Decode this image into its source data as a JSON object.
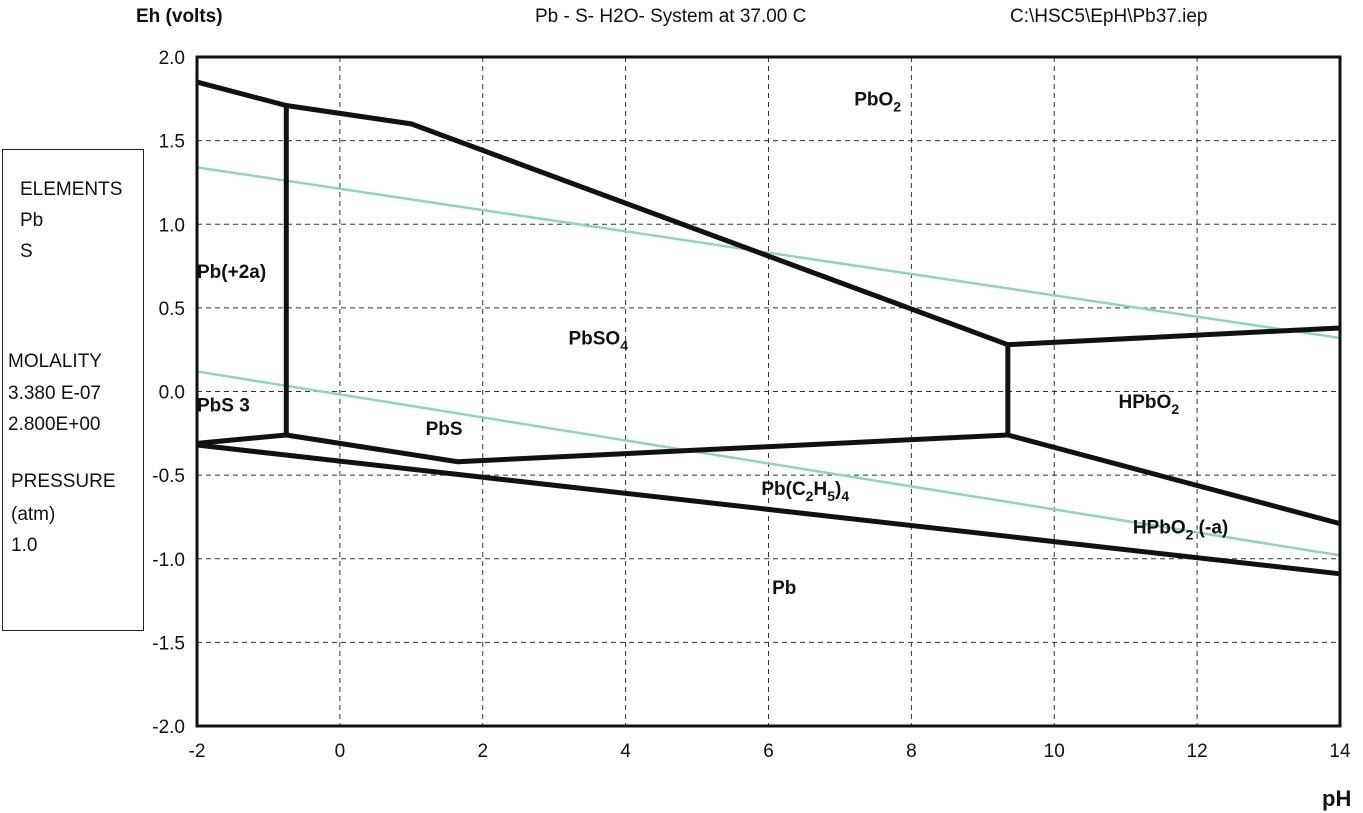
{
  "header": {
    "ylabel": "Eh (volts)",
    "title": "Pb - S- H2O- System at 37.00 C",
    "file": "C:\\HSC5\\EpH\\Pb37.iep"
  },
  "info_box": {
    "elements_label": "ELEMENTS",
    "elements": [
      "Pb",
      "S"
    ],
    "molality_label": "MOLALITY",
    "molality": [
      "3.380 E-07",
      "2.800E+00"
    ],
    "pressure_label": "PRESSURE",
    "pressure_unit": "(atm)",
    "pressure_value": "1.0"
  },
  "colors": {
    "boundary": "#111111",
    "water_lines": "#8fd4bb",
    "grid": "#333333"
  },
  "chart_data": {
    "type": "line",
    "title": "Pb - S- H2O- System at 37.00 C",
    "xlabel": "pH",
    "ylabel": "Eh (volts)",
    "xlim": [
      -2,
      14
    ],
    "ylim": [
      -2.0,
      2.0
    ],
    "x_ticks": [
      "-2",
      "0",
      "2",
      "4",
      "6",
      "8",
      "10",
      "12",
      "14"
    ],
    "y_ticks": [
      "2.0",
      "1.5",
      "1.0",
      "0.5",
      "0.0",
      "-0.5",
      "-1.0",
      "-1.5",
      "-2.0"
    ],
    "grid": true,
    "boundary_lines": [
      {
        "points": [
          [
            -2,
            1.85
          ],
          [
            -0.75,
            1.71
          ],
          [
            1.0,
            1.6
          ],
          [
            9.35,
            0.28
          ],
          [
            14,
            0.38
          ]
        ]
      },
      {
        "points": [
          [
            -0.75,
            1.71
          ],
          [
            -0.75,
            -0.26
          ]
        ]
      },
      {
        "points": [
          [
            -2,
            -0.31
          ],
          [
            -0.75,
            -0.26
          ],
          [
            1.65,
            -0.42
          ],
          [
            9.35,
            -0.26
          ]
        ]
      },
      {
        "points": [
          [
            9.35,
            0.28
          ],
          [
            9.35,
            -0.26
          ]
        ]
      },
      {
        "points": [
          [
            9.35,
            -0.26
          ],
          [
            14,
            -0.79
          ]
        ]
      },
      {
        "points": [
          [
            -2,
            -0.32
          ],
          [
            14,
            -1.09
          ]
        ]
      }
    ],
    "water_stability_lines": [
      {
        "points": [
          [
            -2,
            1.34
          ],
          [
            14,
            0.32
          ]
        ]
      },
      {
        "points": [
          [
            -2,
            0.12
          ],
          [
            14,
            -0.98
          ]
        ]
      }
    ],
    "regions": [
      {
        "label": "PbO",
        "sub": "2",
        "x": 7.2,
        "y": 1.71
      },
      {
        "label": "Pb(+2a)",
        "sub": "",
        "x": -2.0,
        "y": 0.68
      },
      {
        "label": "PbSO",
        "sub": "4",
        "x": 3.2,
        "y": 0.28
      },
      {
        "label": "PbS 3",
        "sub": "",
        "x": -2.0,
        "y": -0.12
      },
      {
        "label": "PbS",
        "sub": "",
        "x": 1.2,
        "y": -0.26
      },
      {
        "label": "HPbO",
        "sub": "2",
        "x": 10.9,
        "y": -0.1
      },
      {
        "label": "Pb(C",
        "sub": "2",
        "tail": "H",
        "sub2": "5",
        "tail2": ")",
        "sub3": "4",
        "x": 5.9,
        "y": -0.62
      },
      {
        "label": "HPbO",
        "sub": "2",
        "tail": " (-a)",
        "x": 11.1,
        "y": -0.85
      },
      {
        "label": "Pb",
        "sub": "",
        "x": 6.05,
        "y": -1.21
      }
    ]
  }
}
